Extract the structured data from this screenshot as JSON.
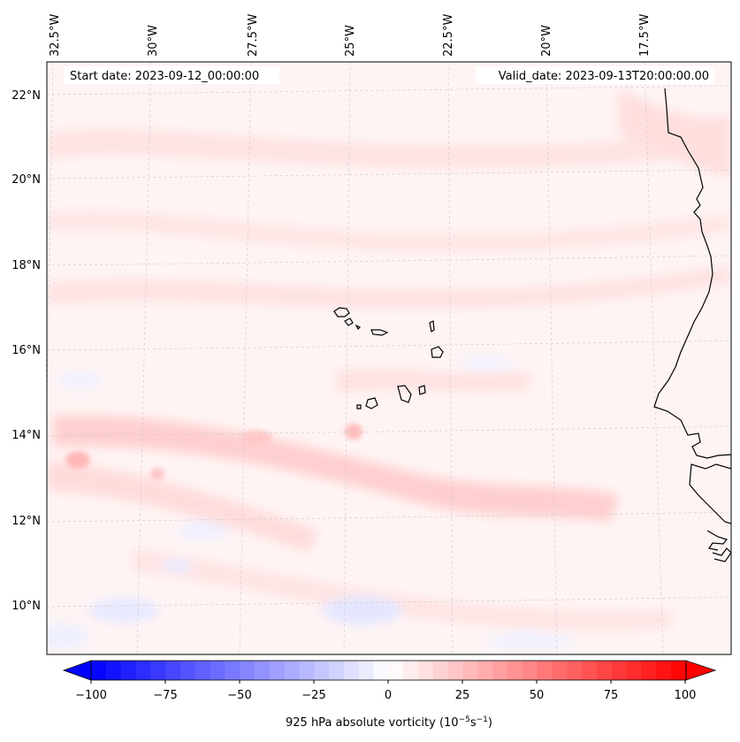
{
  "map": {
    "start_date_text": "Start date: 2023-09-12_00:00:00",
    "valid_date_text": "Valid_date: 2023-09-13T20:00:00.00",
    "lon_labels": [
      "32.5°W",
      "30°W",
      "27.5°W",
      "25°W",
      "22.5°W",
      "20°W",
      "17.5°W"
    ],
    "lat_labels": [
      "22°N",
      "20°N",
      "18°N",
      "16°N",
      "14°N",
      "12°N",
      "10°N"
    ],
    "field": "925 hPa absolute vorticity",
    "colormap": "bwr"
  },
  "colorbar": {
    "label_prefix": "925 hPa absolute vorticity (10",
    "label_exp1": "−5",
    "label_mid": "s",
    "label_exp2": "−1",
    "label_suffix": ")",
    "ticks": [
      "−100",
      "−75",
      "−50",
      "−25",
      "0",
      "25",
      "50",
      "75",
      "100"
    ],
    "range": [
      -100,
      100
    ],
    "colors": {
      "min": "#0000ff",
      "mid": "#ffffff",
      "max": "#ff0000"
    }
  }
}
